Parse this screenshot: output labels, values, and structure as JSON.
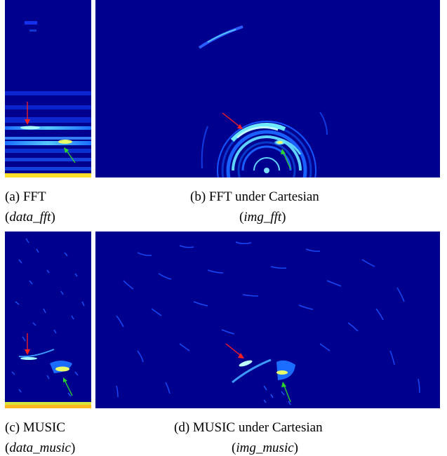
{
  "figures": [
    {
      "id": "a",
      "caption": "(a) FFT",
      "sub": "data_fft"
    },
    {
      "id": "b",
      "caption": "(b) FFT under Cartesian",
      "sub": "img_fft"
    },
    {
      "id": "c",
      "caption": "(c) MUSIC",
      "sub": "data_music"
    },
    {
      "id": "d",
      "caption": "(d) MUSIC under Cartesian",
      "sub": "img_music"
    }
  ],
  "colors": {
    "background": "#00008f",
    "arrow_red": "#ff1f1f",
    "arrow_green": "#2bd52b"
  }
}
